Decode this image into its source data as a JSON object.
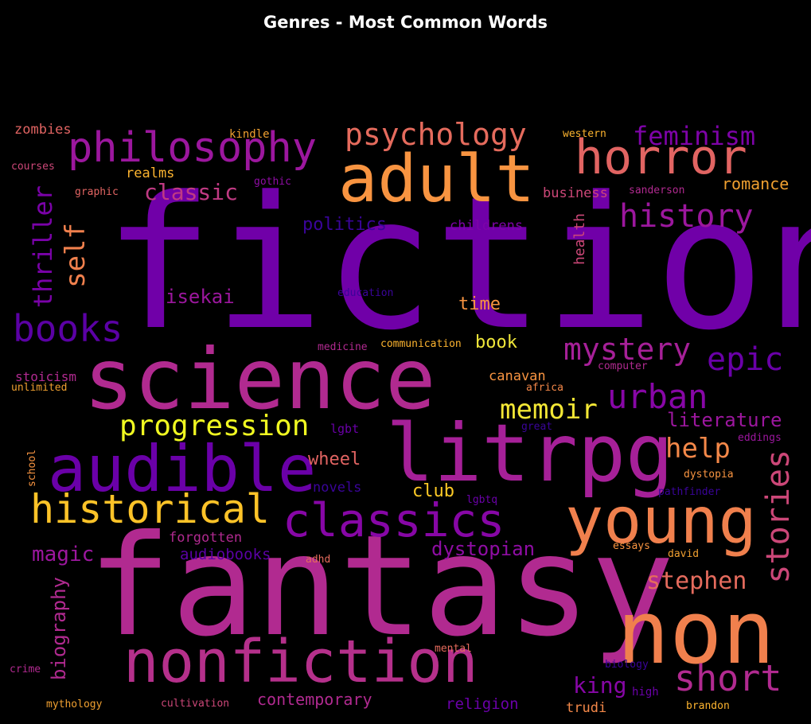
{
  "title": "Genres - Most Common Words",
  "palette": {
    "background": "#000000",
    "title_color": "#ffffff",
    "colormap": "plasma"
  },
  "words": [
    {
      "text": "fiction",
      "color": "#7000a8"
    },
    {
      "text": "fantasy",
      "color": "#b12a90"
    },
    {
      "text": "science",
      "color": "#b12a90"
    },
    {
      "text": "litrpg",
      "color": "#a62098"
    },
    {
      "text": "non",
      "color": "#f0804d"
    },
    {
      "text": "adult",
      "color": "#f89441"
    },
    {
      "text": "young",
      "color": "#f0804d"
    },
    {
      "text": "audible",
      "color": "#6a00a8"
    },
    {
      "text": "nonfiction",
      "color": "#b5308b"
    },
    {
      "text": "horror",
      "color": "#e16462"
    },
    {
      "text": "philosophy",
      "color": "#9c179e"
    },
    {
      "text": "classics",
      "color": "#8707a6"
    },
    {
      "text": "historical",
      "color": "#fdc328"
    },
    {
      "text": "books",
      "color": "#5b01a5"
    },
    {
      "text": "short",
      "color": "#b12a90"
    },
    {
      "text": "stories",
      "color": "#cc4778"
    },
    {
      "text": "history",
      "color": "#9c179e"
    },
    {
      "text": "mystery",
      "color": "#a62098"
    },
    {
      "text": "urban",
      "color": "#8707a6"
    },
    {
      "text": "psychology",
      "color": "#e56b5d"
    },
    {
      "text": "epic",
      "color": "#6a00a8"
    },
    {
      "text": "progression",
      "color": "#f0f921"
    },
    {
      "text": "memoir",
      "color": "#f3e735"
    },
    {
      "text": "help",
      "color": "#f48849"
    },
    {
      "text": "feminism",
      "color": "#7e03a8"
    },
    {
      "text": "thriller",
      "color": "#7a02a8"
    },
    {
      "text": "self",
      "color": "#f0804d"
    },
    {
      "text": "classic",
      "color": "#c03a83"
    },
    {
      "text": "stephen",
      "color": "#e56b5d"
    },
    {
      "text": "king",
      "color": "#8707a6"
    },
    {
      "text": "dystopian",
      "color": "#8f0da4"
    },
    {
      "text": "literature",
      "color": "#9c179e"
    },
    {
      "text": "biography",
      "color": "#b12a90"
    },
    {
      "text": "magic",
      "color": "#9c179e"
    },
    {
      "text": "wheel",
      "color": "#e16462"
    },
    {
      "text": "isekai",
      "color": "#9c179e"
    },
    {
      "text": "politics",
      "color": "#3a049a"
    },
    {
      "text": "time",
      "color": "#f89441"
    },
    {
      "text": "book",
      "color": "#f0e73a"
    },
    {
      "text": "club",
      "color": "#fdca26"
    },
    {
      "text": "contemporary",
      "color": "#b12a90"
    },
    {
      "text": "religion",
      "color": "#6a00a8"
    },
    {
      "text": "audiobooks",
      "color": "#5b01a5"
    },
    {
      "text": "forgotten",
      "color": "#b12a90"
    },
    {
      "text": "business",
      "color": "#cc4778"
    },
    {
      "text": "romance",
      "color": "#f0a030"
    },
    {
      "text": "zombies",
      "color": "#e16462"
    },
    {
      "text": "realms",
      "color": "#fdb42f"
    },
    {
      "text": "canavan",
      "color": "#f89441"
    },
    {
      "text": "health",
      "color": "#cc4778"
    },
    {
      "text": "childrens",
      "color": "#7e03a8"
    },
    {
      "text": "novels",
      "color": "#3a049a"
    },
    {
      "text": "trudi",
      "color": "#f48849"
    },
    {
      "text": "kindle",
      "color": "#f0a030"
    },
    {
      "text": "western",
      "color": "#fdb42f"
    },
    {
      "text": "gothic",
      "color": "#8f0da4"
    },
    {
      "text": "graphic",
      "color": "#e16462"
    },
    {
      "text": "courses",
      "color": "#cc4778"
    },
    {
      "text": "sanderson",
      "color": "#b12a90"
    },
    {
      "text": "education",
      "color": "#3a049a"
    },
    {
      "text": "medicine",
      "color": "#b12a90"
    },
    {
      "text": "communication",
      "color": "#fdb42f"
    },
    {
      "text": "stoicism",
      "color": "#b12a90"
    },
    {
      "text": "unlimited",
      "color": "#f0a030"
    },
    {
      "text": "computer",
      "color": "#b12a90"
    },
    {
      "text": "africa",
      "color": "#f48849"
    },
    {
      "text": "lgbt",
      "color": "#6a00a8"
    },
    {
      "text": "great",
      "color": "#3a049a"
    },
    {
      "text": "eddings",
      "color": "#9c179e"
    },
    {
      "text": "school",
      "color": "#f89441"
    },
    {
      "text": "dystopia",
      "color": "#f89441"
    },
    {
      "text": "lgbtq",
      "color": "#6a00a8"
    },
    {
      "text": "pathfinder",
      "color": "#3a049a"
    },
    {
      "text": "adhd",
      "color": "#e56b5d"
    },
    {
      "text": "essays",
      "color": "#f89441"
    },
    {
      "text": "david",
      "color": "#f0a030"
    },
    {
      "text": "mental",
      "color": "#e56b5d"
    },
    {
      "text": "crime",
      "color": "#b12a90"
    },
    {
      "text": "mythology",
      "color": "#f0a030"
    },
    {
      "text": "cultivation",
      "color": "#cc4778"
    },
    {
      "text": "biology",
      "color": "#3a049a"
    },
    {
      "text": "high",
      "color": "#6a00a8"
    },
    {
      "text": "brandon",
      "color": "#fdb42f"
    }
  ]
}
